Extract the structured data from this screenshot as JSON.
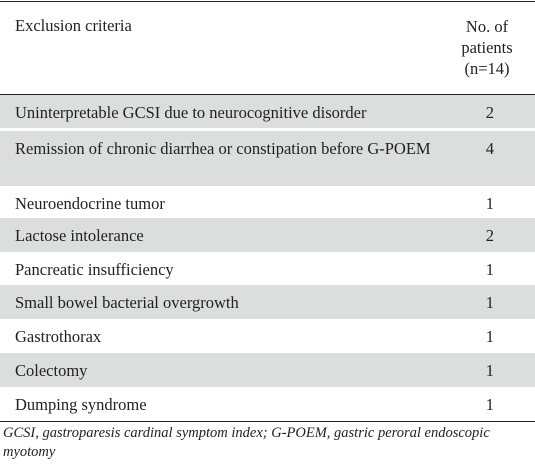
{
  "table": {
    "header": {
      "criteria_label": "Exclusion criteria",
      "count_label_line1": "No. of",
      "count_label_line2": "patients",
      "count_label_line3": "(n=14)"
    },
    "rows": [
      {
        "label": "Uninterpretable GCSI due to neurocognitive disorder",
        "value": "2"
      },
      {
        "label": "Remission of chronic diarrhea or constipation before G-POEM",
        "value": "4"
      },
      {
        "label": "Neuroendocrine tumor",
        "value": "1"
      },
      {
        "label": "Lactose intolerance",
        "value": "2"
      },
      {
        "label": "Pancreatic insufficiency",
        "value": "1"
      },
      {
        "label": "Small bowel bacterial overgrowth",
        "value": "1"
      },
      {
        "label": "Gastrothorax",
        "value": "1"
      },
      {
        "label": "Colectomy",
        "value": "1"
      },
      {
        "label": "Dumping syndrome",
        "value": "1"
      }
    ]
  },
  "footnote": "GCSI, gastroparesis cardinal symptom index; G-POEM, gastric peroral endoscopic myotomy"
}
